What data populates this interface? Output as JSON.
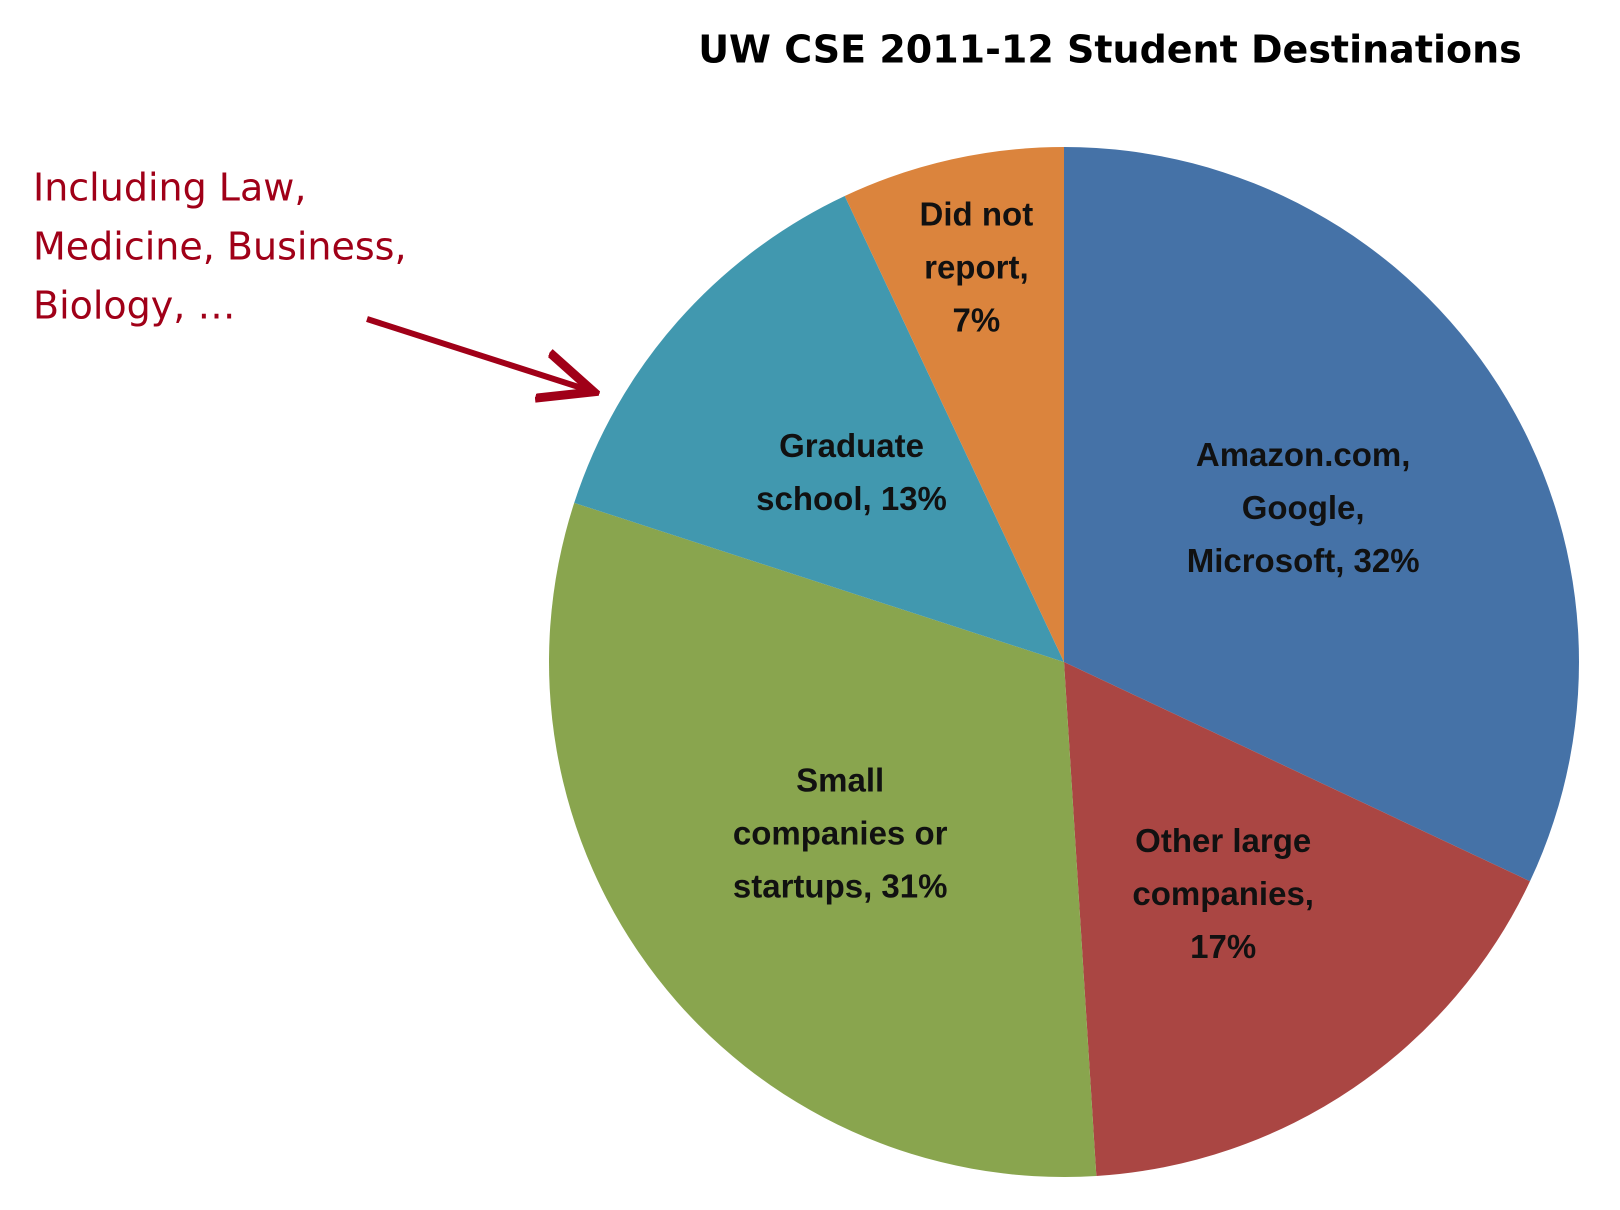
{
  "chart_data": {
    "type": "pie",
    "title": "UW CSE 2011-12 Student Destinations",
    "values": [
      32,
      17,
      31,
      13,
      7
    ],
    "value_labels": [
      [
        "Amazon.com,",
        "Google,",
        "Microsoft, 32%"
      ],
      [
        "Other large",
        "companies,",
        "17%"
      ],
      [
        "Small",
        "companies or",
        "startups, 31%"
      ],
      [
        "Graduate",
        "school, 13%"
      ],
      [
        "Did not",
        "report,",
        "7%"
      ]
    ],
    "colors": [
      "#4572A7",
      "#AA4643",
      "#89A54E",
      "#4198AF",
      "#DB843D"
    ],
    "annotation": [
      "Including Law,",
      "Medicine, Business,",
      "Biology, …"
    ]
  }
}
